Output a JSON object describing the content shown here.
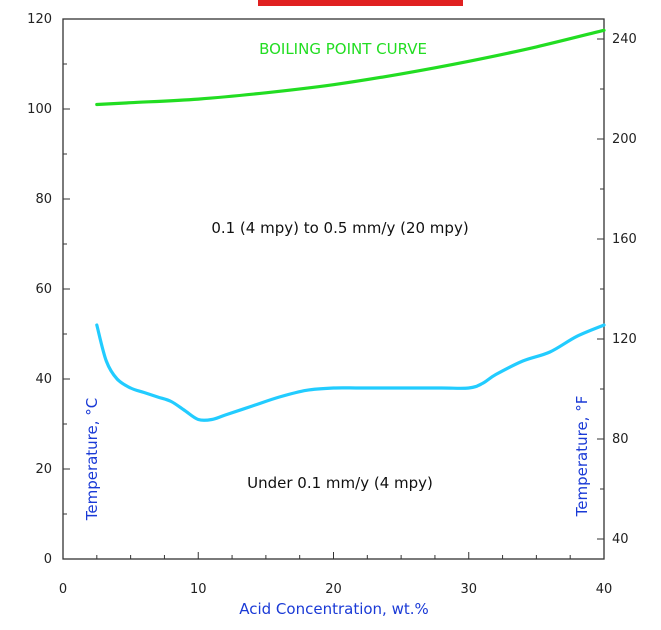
{
  "chart_data": {
    "type": "line",
    "title": "",
    "xlabel": "Acid Concentration, wt.%",
    "ylabel_left": "Temperature, °C",
    "ylabel_right": "Temperature, °F",
    "xlim": [
      0,
      40
    ],
    "ylim": [
      0,
      120
    ],
    "ylim_right_F": [
      32,
      248
    ],
    "x_ticks": [
      0,
      10,
      20,
      30,
      40
    ],
    "y_ticks": [
      0,
      20,
      40,
      60,
      80,
      100,
      120
    ],
    "y_ticks_right": [
      40,
      80,
      120,
      160,
      200,
      240
    ],
    "grid": false,
    "series": [
      {
        "key": "boiling",
        "name": "BOILING POINT CURVE",
        "color": "#22dd22",
        "x": [
          2.5,
          5,
          10,
          15,
          20,
          25,
          30,
          35,
          40
        ],
        "y": [
          101,
          101.4,
          102.2,
          103.6,
          105.4,
          107.8,
          110.6,
          113.8,
          117.5
        ]
      },
      {
        "key": "iso",
        "name": "",
        "color": "#22ccff",
        "x": [
          2.5,
          3.2,
          4,
          5,
          6,
          7,
          8,
          9,
          10,
          11,
          12,
          14,
          16,
          18,
          20,
          22,
          25,
          28,
          30,
          31,
          32,
          34,
          36,
          38,
          40
        ],
        "y": [
          52,
          44,
          40,
          38,
          37,
          36,
          35,
          33,
          31,
          31,
          32,
          34,
          36,
          37.5,
          38,
          38,
          38,
          38,
          38,
          39,
          41,
          44,
          46,
          49.5,
          52
        ]
      }
    ],
    "annotations": [
      "BOILING POINT CURVE",
      "0.1 (4 mpy) to 0.5 mm/y (20 mpy)",
      "Under 0.1 mm/y (4 mpy)"
    ]
  },
  "colors": {
    "boiling_curve": "#22dd22",
    "iso_curve": "#22ccff",
    "axis_label": "#1a3ad6",
    "axis": "#333333"
  }
}
